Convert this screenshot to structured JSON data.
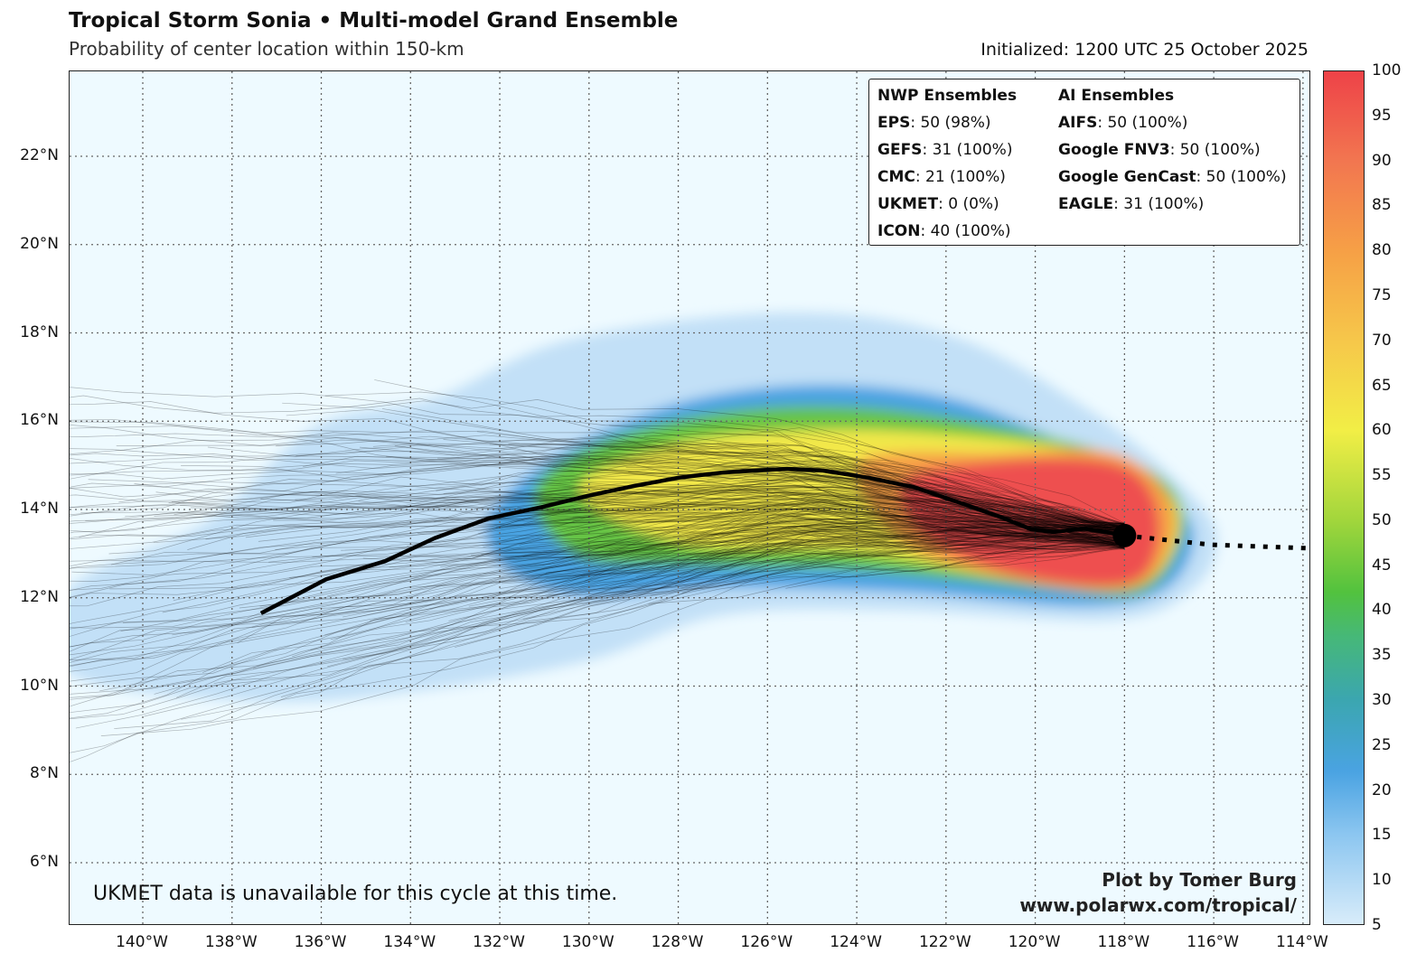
{
  "header": {
    "title": "Tropical Storm Sonia • Multi-model Grand Ensemble",
    "subtitle": "Probability of center location within 150-km",
    "initialized": "Initialized: 1200 UTC 25 October 2025"
  },
  "legend": {
    "nwp_heading": "NWP Ensembles",
    "nwp": [
      {
        "name": "EPS",
        "value": ": 50 (98%)"
      },
      {
        "name": "GEFS",
        "value": ": 31 (100%)"
      },
      {
        "name": "CMC",
        "value": ": 21 (100%)"
      },
      {
        "name": "UKMET",
        "value": ": 0 (0%)"
      },
      {
        "name": "ICON",
        "value": ": 40 (100%)"
      }
    ],
    "ai_heading": "AI Ensembles",
    "ai": [
      {
        "name": "AIFS",
        "value": ": 50 (100%)"
      },
      {
        "name": "Google FNV3",
        "value": ": 50 (100%)"
      },
      {
        "name": "Google GenCast",
        "value": ": 50 (100%)"
      },
      {
        "name": "EAGLE",
        "value": ": 31 (100%)"
      }
    ]
  },
  "annotations": {
    "note": "UKMET data is unavailable for this cycle at this time.",
    "credit_line1": "Plot by Tomer Burg",
    "credit_line2": "www.polarwx.com/tropical/"
  },
  "chart_data": {
    "type": "heatmap",
    "extent": {
      "lon": [
        -141.64,
        -113.8
      ],
      "lat": [
        4.57,
        23.92
      ]
    },
    "lon_ticks": [
      "140°W",
      "138°W",
      "136°W",
      "134°W",
      "132°W",
      "130°W",
      "128°W",
      "126°W",
      "124°W",
      "122°W",
      "120°W",
      "118°W",
      "116°W",
      "114°W"
    ],
    "lon_tick_values": [
      -140,
      -138,
      -136,
      -134,
      -132,
      -130,
      -128,
      -126,
      -124,
      -122,
      -120,
      -118,
      -116,
      -114
    ],
    "lat_ticks": [
      "22°N",
      "20°N",
      "18°N",
      "16°N",
      "14°N",
      "12°N",
      "10°N",
      "8°N",
      "6°N"
    ],
    "lat_tick_values": [
      22,
      20,
      18,
      16,
      14,
      12,
      10,
      8,
      6
    ],
    "grid": true,
    "colorbar": {
      "range": [
        5,
        100
      ],
      "ticks": [
        5,
        10,
        15,
        20,
        25,
        30,
        35,
        40,
        45,
        50,
        55,
        60,
        65,
        70,
        75,
        80,
        85,
        90,
        95,
        100
      ],
      "stops": [
        {
          "v": 5,
          "c": "#d8ecfa"
        },
        {
          "v": 15,
          "c": "#8cc6f0"
        },
        {
          "v": 22,
          "c": "#4aa3e2"
        },
        {
          "v": 30,
          "c": "#3ba6b0"
        },
        {
          "v": 37,
          "c": "#46b878"
        },
        {
          "v": 42,
          "c": "#52c23e"
        },
        {
          "v": 50,
          "c": "#a2d63c"
        },
        {
          "v": 60,
          "c": "#f2ee46"
        },
        {
          "v": 70,
          "c": "#f6c74a"
        },
        {
          "v": 80,
          "c": "#f6a046"
        },
        {
          "v": 90,
          "c": "#f27650"
        },
        {
          "v": 100,
          "c": "#ee4248"
        }
      ]
    },
    "probability_regions": [
      {
        "level": 10,
        "color": "#c2e0f7",
        "polygon": [
          [
            -141.64,
            12.22
          ],
          [
            -138.52,
            13.75
          ],
          [
            -136.09,
            15.9
          ],
          [
            -133.46,
            16.52
          ],
          [
            -130.42,
            17.85
          ],
          [
            -125.56,
            18.46
          ],
          [
            -121.92,
            17.95
          ],
          [
            -118.88,
            16.31
          ],
          [
            -116.85,
            14.68
          ],
          [
            -115.94,
            13.45
          ],
          [
            -116.45,
            12.22
          ],
          [
            -118.27,
            11.5
          ],
          [
            -122.93,
            11.71
          ],
          [
            -126.98,
            11.61
          ],
          [
            -130.02,
            10.58
          ],
          [
            -134.07,
            9.87
          ],
          [
            -137.51,
            9.66
          ],
          [
            -141.64,
            10.28
          ]
        ]
      },
      {
        "level": 25,
        "color": "#4aa3e2",
        "polygon": [
          [
            -132.24,
            13.86
          ],
          [
            -130.62,
            15.29
          ],
          [
            -127.99,
            16.41
          ],
          [
            -124.95,
            16.82
          ],
          [
            -121.92,
            16.52
          ],
          [
            -119.28,
            15.49
          ],
          [
            -117.26,
            14.47
          ],
          [
            -116.45,
            13.45
          ],
          [
            -117.06,
            12.22
          ],
          [
            -118.88,
            11.81
          ],
          [
            -122.93,
            12.12
          ],
          [
            -126.98,
            12.22
          ],
          [
            -130.02,
            12.02
          ],
          [
            -131.84,
            12.63
          ]
        ]
      },
      {
        "level": 45,
        "color": "#66c444",
        "polygon": [
          [
            -131.23,
            14.37
          ],
          [
            -129.81,
            15.49
          ],
          [
            -126.98,
            16.21
          ],
          [
            -123.94,
            16.31
          ],
          [
            -120.9,
            15.9
          ],
          [
            -118.07,
            15.19
          ],
          [
            -116.85,
            14.37
          ],
          [
            -116.75,
            13.24
          ],
          [
            -117.66,
            12.12
          ],
          [
            -119.89,
            12.22
          ],
          [
            -123.94,
            12.63
          ],
          [
            -127.38,
            12.73
          ],
          [
            -130.22,
            12.94
          ]
        ]
      },
      {
        "level": 60,
        "color": "#f2e84a",
        "polygon": [
          [
            -130.22,
            14.47
          ],
          [
            -127.99,
            15.49
          ],
          [
            -124.95,
            15.8
          ],
          [
            -121.92,
            15.7
          ],
          [
            -118.88,
            15.29
          ],
          [
            -117.06,
            14.37
          ],
          [
            -116.85,
            13.24
          ],
          [
            -117.87,
            12.22
          ],
          [
            -120.5,
            12.42
          ],
          [
            -123.94,
            13.04
          ],
          [
            -127.99,
            13.24
          ]
        ]
      },
      {
        "level": 80,
        "color": "#f6a046",
        "polygon": [
          [
            -123.94,
            15.08
          ],
          [
            -120.9,
            15.29
          ],
          [
            -118.27,
            15.29
          ],
          [
            -117.06,
            14.37
          ],
          [
            -116.95,
            13.24
          ],
          [
            -117.87,
            12.22
          ],
          [
            -120.5,
            12.42
          ],
          [
            -122.93,
            13.24
          ]
        ]
      },
      {
        "level": 95,
        "color": "#ee5050",
        "polygon": [
          [
            -122.93,
            14.67
          ],
          [
            -120.9,
            15.08
          ],
          [
            -118.47,
            15.08
          ],
          [
            -117.46,
            14.47
          ],
          [
            -117.26,
            13.24
          ],
          [
            -117.97,
            12.32
          ],
          [
            -120.5,
            12.53
          ],
          [
            -122.53,
            13.45
          ]
        ]
      }
    ],
    "ensemble_mean_track": [
      [
        -137.35,
        11.65
      ],
      [
        -135.89,
        12.42
      ],
      [
        -134.57,
        12.83
      ],
      [
        -133.46,
        13.35
      ],
      [
        -132.24,
        13.8
      ],
      [
        -131.03,
        14.06
      ],
      [
        -130.02,
        14.31
      ],
      [
        -129.0,
        14.53
      ],
      [
        -127.99,
        14.72
      ],
      [
        -126.98,
        14.84
      ],
      [
        -125.56,
        14.92
      ],
      [
        -124.75,
        14.88
      ],
      [
        -123.74,
        14.72
      ],
      [
        -122.73,
        14.51
      ],
      [
        -121.71,
        14.16
      ],
      [
        -120.7,
        13.8
      ],
      [
        -120.09,
        13.55
      ],
      [
        -119.59,
        13.49
      ],
      [
        -118.88,
        13.57
      ],
      [
        -118.0,
        13.41
      ]
    ],
    "current_position": [
      -118.0,
      13.41
    ],
    "past_track": [
      [
        -118.0,
        13.41
      ],
      [
        -116.04,
        13.2
      ],
      [
        -113.8,
        13.12
      ]
    ]
  }
}
